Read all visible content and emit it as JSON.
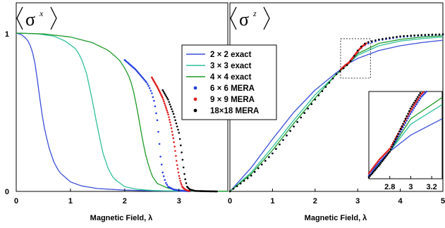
{
  "chart_data": [
    {
      "id": "sigma-x",
      "type": "line",
      "panel_label": {
        "main": "σ",
        "sup": "x"
      },
      "xlabel": "Magnetic Field, λ",
      "xlim": [
        0,
        3.9
      ],
      "ylim": [
        0,
        1
      ],
      "xticks": [
        "0",
        "1",
        "2",
        "3"
      ],
      "yticks": [
        "0",
        "1"
      ],
      "grid": false,
      "series": [
        {
          "name": "2 × 2 exact",
          "style": "line",
          "color": "#3b4fd8",
          "x": [
            0,
            0.1,
            0.2,
            0.25,
            0.3,
            0.35,
            0.4,
            0.45,
            0.5,
            0.6,
            0.7,
            0.8,
            1.0,
            1.2,
            1.5,
            2.0,
            2.5,
            3.0,
            3.9
          ],
          "y": [
            1.0,
            0.99,
            0.96,
            0.93,
            0.88,
            0.8,
            0.68,
            0.55,
            0.43,
            0.28,
            0.18,
            0.12,
            0.06,
            0.035,
            0.018,
            0.008,
            0.004,
            0.002,
            0.001
          ]
        },
        {
          "name": "3 × 3 exact",
          "style": "line",
          "color": "#2fbf9a",
          "x": [
            0,
            0.4,
            0.7,
            0.9,
            1.1,
            1.2,
            1.3,
            1.4,
            1.5,
            1.6,
            1.7,
            1.8,
            2.0,
            2.2,
            2.5,
            3.0,
            3.5,
            3.9
          ],
          "y": [
            1.0,
            0.995,
            0.98,
            0.95,
            0.9,
            0.84,
            0.74,
            0.58,
            0.4,
            0.24,
            0.14,
            0.08,
            0.03,
            0.015,
            0.006,
            0.002,
            0.001,
            0.001
          ]
        },
        {
          "name": "4 × 4 exact",
          "style": "line",
          "color": "#1f9a2a",
          "x": [
            0,
            0.5,
            1.0,
            1.4,
            1.7,
            1.9,
            2.0,
            2.1,
            2.15,
            2.2,
            2.25,
            2.3,
            2.35,
            2.4,
            2.5,
            2.6,
            2.8,
            3.0,
            3.3,
            3.9
          ],
          "y": [
            1.0,
            0.995,
            0.975,
            0.94,
            0.89,
            0.83,
            0.78,
            0.71,
            0.65,
            0.57,
            0.48,
            0.38,
            0.29,
            0.21,
            0.1,
            0.05,
            0.02,
            0.008,
            0.003,
            0.001
          ]
        },
        {
          "name": "6 × 6 MERA",
          "style": "dots",
          "color": "#2640e0",
          "x": [
            2.0,
            2.1,
            2.2,
            2.3,
            2.4,
            2.45,
            2.5,
            2.55,
            2.6,
            2.63,
            2.66,
            2.7,
            2.75,
            2.8,
            2.9,
            3.0,
            3.1,
            3.2
          ],
          "y": [
            0.83,
            0.8,
            0.77,
            0.73,
            0.69,
            0.66,
            0.62,
            0.56,
            0.45,
            0.34,
            0.22,
            0.12,
            0.06,
            0.03,
            0.012,
            0.006,
            0.003,
            0.001
          ]
        },
        {
          "name": "9 × 9 MERA",
          "style": "dots",
          "color": "#e02020",
          "x": [
            2.5,
            2.6,
            2.7,
            2.8,
            2.85,
            2.9,
            2.93,
            2.96,
            3.0,
            3.03,
            3.06,
            3.1,
            3.15,
            3.2
          ],
          "y": [
            0.72,
            0.66,
            0.59,
            0.49,
            0.42,
            0.33,
            0.26,
            0.18,
            0.1,
            0.06,
            0.03,
            0.015,
            0.006,
            0.003
          ]
        },
        {
          "name": "18×18 MERA",
          "style": "dots",
          "color": "#000000",
          "x": [
            2.7,
            2.8,
            2.9,
            3.0,
            3.03,
            3.06,
            3.08,
            3.1,
            3.12,
            3.15,
            3.2,
            3.3,
            3.5,
            3.7
          ],
          "y": [
            0.64,
            0.58,
            0.49,
            0.37,
            0.3,
            0.22,
            0.16,
            0.11,
            0.07,
            0.03,
            0.012,
            0.003,
            0.001,
            0.0
          ]
        }
      ]
    },
    {
      "id": "sigma-z",
      "type": "line",
      "panel_label": {
        "main": "σ",
        "sup": "z"
      },
      "xlabel": "Magnetic Field, λ",
      "xlim": [
        0,
        5
      ],
      "ylim": [
        0,
        1
      ],
      "xticks": [
        "0",
        "1",
        "2",
        "3",
        "4",
        "5"
      ],
      "yticks": [],
      "grid": false,
      "legend": {
        "placement": "right",
        "entries": [
          "2 × 2 exact",
          "3 × 3 exact",
          "4 × 4 exact",
          "6 × 6 MERA",
          "9 × 9 MERA",
          "18×18 MERA"
        ]
      },
      "inset": {
        "xlim": [
          2.6,
          3.3
        ],
        "ylim": [
          0.76,
          0.92
        ],
        "xticks": [
          "2.8",
          "3",
          "3.2"
        ],
        "highlight_box": {
          "xlim": [
            2.6,
            3.3
          ],
          "ylim": [
            0.76,
            0.92
          ]
        }
      },
      "series": [
        {
          "name": "2 × 2 exact",
          "style": "line",
          "color": "#3b4fd8",
          "x": [
            0,
            0.5,
            1.0,
            1.5,
            2.0,
            2.5,
            2.8,
            3.0,
            3.5,
            4.0,
            4.5,
            5.0
          ],
          "y": [
            0.0,
            0.15,
            0.33,
            0.5,
            0.64,
            0.75,
            0.81,
            0.84,
            0.89,
            0.92,
            0.94,
            0.955
          ]
        },
        {
          "name": "3 × 3 exact",
          "style": "line",
          "color": "#2fbf9a",
          "x": [
            0,
            0.5,
            1.0,
            1.5,
            2.0,
            2.5,
            2.8,
            3.0,
            3.5,
            4.0,
            4.5,
            5.0
          ],
          "y": [
            0.0,
            0.12,
            0.28,
            0.45,
            0.61,
            0.74,
            0.81,
            0.86,
            0.92,
            0.95,
            0.965,
            0.975
          ]
        },
        {
          "name": "4 × 4 exact",
          "style": "line",
          "color": "#1f9a2a",
          "x": [
            0,
            0.5,
            1.0,
            1.5,
            2.0,
            2.5,
            2.8,
            3.0,
            3.5,
            4.0,
            4.5,
            5.0
          ],
          "y": [
            0.0,
            0.11,
            0.26,
            0.43,
            0.59,
            0.74,
            0.81,
            0.87,
            0.935,
            0.96,
            0.975,
            0.983
          ]
        },
        {
          "name": "6 × 6 MERA",
          "style": "dots",
          "color": "#2640e0",
          "x": [
            0,
            0.5,
            1.0,
            1.5,
            2.0,
            2.5,
            2.7,
            2.8,
            2.9,
            3.0,
            3.1,
            3.2,
            3.5,
            4.0,
            4.5,
            5.0
          ],
          "y": [
            0.0,
            0.1,
            0.24,
            0.41,
            0.58,
            0.74,
            0.79,
            0.81,
            0.845,
            0.88,
            0.91,
            0.93,
            0.955,
            0.975,
            0.985,
            0.99
          ]
        },
        {
          "name": "9 × 9 MERA",
          "style": "dots",
          "color": "#e02020",
          "x": [
            2.6,
            2.7,
            2.8,
            2.9,
            3.0,
            3.1,
            3.2
          ],
          "y": [
            0.77,
            0.795,
            0.815,
            0.85,
            0.885,
            0.915,
            0.935
          ]
        },
        {
          "name": "18×18 MERA",
          "style": "dots",
          "color": "#000000",
          "x": [
            0,
            0.5,
            1.0,
            1.5,
            2.0,
            2.5,
            2.7,
            2.8,
            2.9,
            3.0,
            3.1,
            3.2,
            3.5,
            4.0,
            4.5,
            5.0
          ],
          "y": [
            0.0,
            0.1,
            0.24,
            0.41,
            0.58,
            0.74,
            0.785,
            0.81,
            0.85,
            0.89,
            0.92,
            0.94,
            0.96,
            0.98,
            0.988,
            0.993
          ]
        }
      ]
    }
  ]
}
